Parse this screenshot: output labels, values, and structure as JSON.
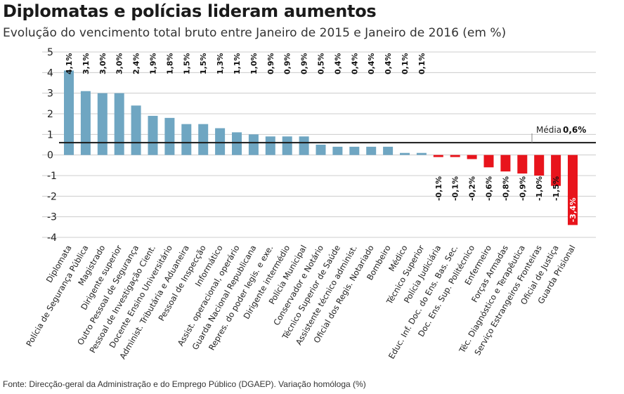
{
  "header": {
    "title": "Diplomatas e polícias lideram aumentos",
    "subtitle": "Evolução do vencimento total bruto entre Janeiro de 2015 e Janeiro de 2016 (em %)"
  },
  "footer": {
    "source": "Fonte: Direcção-geral da Administração e do Emprego Público (DGAEP). Variação homóloga (%)"
  },
  "chart_data": {
    "type": "bar",
    "title": "Diplomatas e polícias lideram aumentos",
    "subtitle": "Evolução do vencimento total bruto entre Janeiro de 2015 e Janeiro de 2016 (em %)",
    "xlabel": "",
    "ylabel": "",
    "ylim": [
      -4,
      5
    ],
    "yticks": [
      "5",
      "4",
      "3",
      "2",
      "1",
      "0",
      "-1",
      "-2",
      "-3",
      "-4"
    ],
    "categories": [
      "Diplomata",
      "Polícia de Segurança Pública",
      "Magistrado",
      "Dirigente superior",
      "Outro Pessoal de Segurança",
      "Pessoal de Investigação Cient.",
      "Docente Ensino Universitário",
      "Administ. Tributária e Aduaneira",
      "Pessoal de Inspecção",
      "Informático",
      "Assist. operacional, operário",
      "Guarda Nacional Republicana",
      "Repres. do poder legis. e exe.",
      "Dirigente intermédio",
      "Polícia Municipal",
      "Conservador e Notário",
      "Técnico Superior de Saúde",
      "Assistente técnico administ.",
      "Oficial dos Regis. Notariado",
      "Bombeiro",
      "Médico",
      "Técnico Superior",
      "Polícia Judiciária",
      "Educ. Inf. Doc. do Ens. Bas. Sec.",
      "Doc. Ens. Sup. Politécnico",
      "Enfermeiro",
      "Forças Armadas",
      "Téc. Diagnóstico e Terapêutica",
      "Serviço Estrangeiros Fronteiras",
      "Oficial de Justiça",
      "Guarda Prisional"
    ],
    "values": [
      4.1,
      3.1,
      3.0,
      3.0,
      2.4,
      1.9,
      1.8,
      1.5,
      1.5,
      1.3,
      1.1,
      1.0,
      0.9,
      0.9,
      0.9,
      0.5,
      0.4,
      0.4,
      0.4,
      0.4,
      0.1,
      0.1,
      -0.1,
      -0.1,
      -0.2,
      -0.6,
      -0.8,
      -0.9,
      -1.0,
      -1.5,
      -3.4
    ],
    "value_labels": [
      "4,1%",
      "3,1%",
      "3,0%",
      "3,0%",
      "2,4%",
      "1,9%",
      "1,8%",
      "1,5%",
      "1,5%",
      "1,3%",
      "1,1%",
      "1,0%",
      "0,9%",
      "0,9%",
      "0,9%",
      "0,5%",
      "0,4%",
      "0,4%",
      "0,4%",
      "0,4%",
      "0,1%",
      "0,1%",
      "-0,1%",
      "-0,1%",
      "-0,2%",
      "-0,6%",
      "-0,8%",
      "-0,9%",
      "-1,0%",
      "-1,5%",
      "-3,4%"
    ],
    "average": {
      "label": "Média",
      "value": 0.6,
      "value_label": "0,6%"
    },
    "colors": {
      "positive": "#6fa6c2",
      "negative": "#e8141c",
      "average_line": "#1a1a1a",
      "grid": "#cccccc"
    }
  }
}
